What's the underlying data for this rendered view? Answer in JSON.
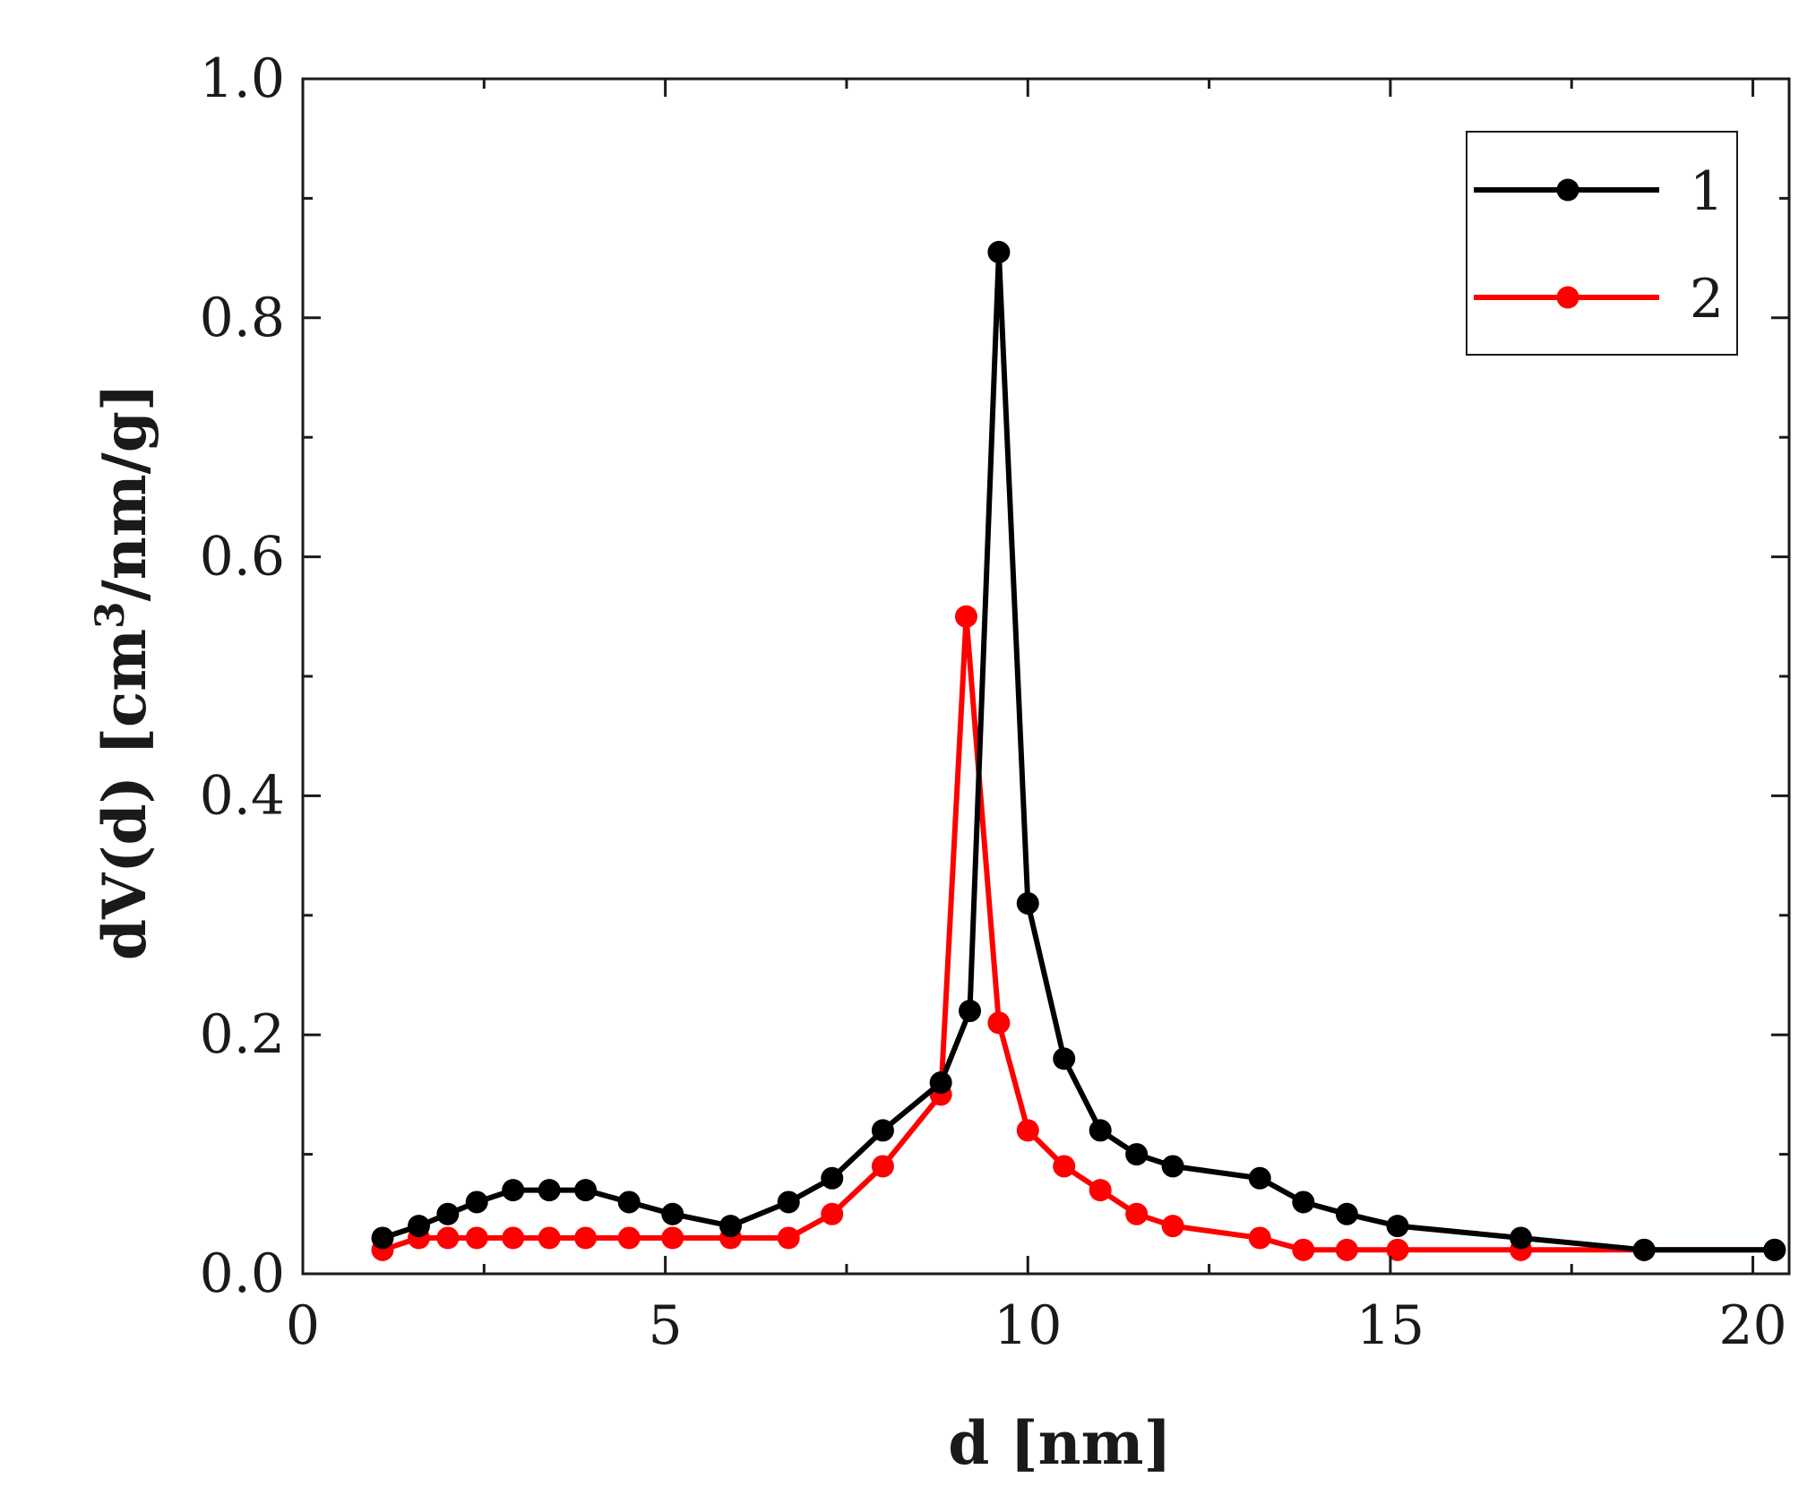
{
  "chart_data": {
    "type": "line",
    "title": "",
    "xlabel": "d [nm]",
    "ylabel_prefix": "dV(d) [cm",
    "ylabel_sup": "3",
    "ylabel_suffix": "/nm/g]",
    "xlim": [
      0,
      20.5
    ],
    "ylim": [
      0,
      1.0
    ],
    "x_ticks": [
      0,
      5,
      10,
      15,
      20
    ],
    "x_tick_labels": [
      "0",
      "5",
      "10",
      "15",
      "20"
    ],
    "y_ticks": [
      0,
      0.2,
      0.4,
      0.6,
      0.8,
      1.0
    ],
    "y_tick_labels": [
      "0.0",
      "0.2",
      "0.4",
      "0.6",
      "0.8",
      "1.0"
    ],
    "grid": false,
    "legend_position": "top-right",
    "series": [
      {
        "name": "1",
        "color": "#000000",
        "x": [
          1.1,
          1.6,
          2.0,
          2.4,
          2.9,
          3.4,
          3.9,
          4.5,
          5.1,
          5.9,
          6.7,
          7.3,
          8.0,
          8.8,
          9.2,
          9.6,
          10.0,
          10.5,
          11.0,
          11.5,
          12.0,
          13.2,
          13.8,
          14.4,
          15.1,
          16.8,
          18.5,
          20.3
        ],
        "values": [
          0.03,
          0.04,
          0.05,
          0.06,
          0.07,
          0.07,
          0.07,
          0.06,
          0.05,
          0.04,
          0.06,
          0.08,
          0.12,
          0.16,
          0.22,
          0.855,
          0.31,
          0.18,
          0.12,
          0.1,
          0.09,
          0.08,
          0.06,
          0.05,
          0.04,
          0.03,
          0.02,
          0.02
        ]
      },
      {
        "name": "2",
        "color": "#ff0000",
        "x": [
          1.1,
          1.6,
          2.0,
          2.4,
          2.9,
          3.4,
          3.9,
          4.5,
          5.1,
          5.9,
          6.7,
          7.3,
          8.0,
          8.8,
          9.15,
          9.6,
          10.0,
          10.5,
          11.0,
          11.5,
          12.0,
          13.2,
          13.8,
          14.4,
          15.1,
          16.8,
          18.5,
          20.3
        ],
        "values": [
          0.02,
          0.03,
          0.03,
          0.03,
          0.03,
          0.03,
          0.03,
          0.03,
          0.03,
          0.03,
          0.03,
          0.05,
          0.09,
          0.15,
          0.55,
          0.21,
          0.12,
          0.09,
          0.07,
          0.05,
          0.04,
          0.03,
          0.02,
          0.02,
          0.02,
          0.02,
          0.02,
          0.02
        ]
      }
    ]
  }
}
